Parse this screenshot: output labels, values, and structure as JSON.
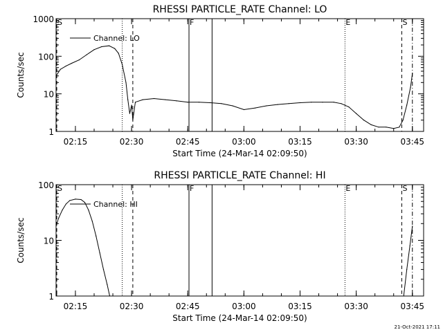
{
  "footer": {
    "date": "21-Oct-2021 17:11"
  },
  "chart_data": [
    {
      "type": "line",
      "title": "RHESSI PARTICLE_RATE Channel: LO",
      "ylabel": "Counts/sec",
      "xlabel": "Start Time (24-Mar-14 02:09:50)",
      "y_scale": "log",
      "ylim": [
        1,
        1000
      ],
      "xlim": [
        "02:09:50",
        "03:48:00"
      ],
      "x_ticks": [
        "02:15",
        "02:30",
        "02:45",
        "03:00",
        "03:15",
        "03:30",
        "03:45"
      ],
      "y_ticks": [
        "1",
        "10",
        "100",
        "1000"
      ],
      "legend": {
        "placement": "top-left",
        "entries": [
          "Channel: LO"
        ]
      },
      "markers": [
        {
          "label": "S",
          "time": "02:09:50",
          "style": "dashed"
        },
        {
          "label": "",
          "time": "02:27:30",
          "style": "dotted"
        },
        {
          "label": "",
          "time": "02:30:20",
          "style": "dashed"
        },
        {
          "label": "F",
          "time": "02:45:20",
          "style": "solid"
        },
        {
          "label": "",
          "time": "02:51:30",
          "style": "solid"
        },
        {
          "label": "E",
          "time": "03:27:00",
          "style": "dotted"
        },
        {
          "label": "S",
          "time": "03:42:10",
          "style": "dashed"
        },
        {
          "label": "",
          "time": "03:45:00",
          "style": "dashdot"
        }
      ],
      "series": [
        {
          "name": "Channel: LO",
          "points": [
            [
              "02:09:50",
              30
            ],
            [
              "02:11:00",
              45
            ],
            [
              "02:12:30",
              55
            ],
            [
              "02:14:00",
              65
            ],
            [
              "02:16:00",
              80
            ],
            [
              "02:18:00",
              110
            ],
            [
              "02:20:00",
              150
            ],
            [
              "02:22:00",
              180
            ],
            [
              "02:24:00",
              190
            ],
            [
              "02:25:30",
              160
            ],
            [
              "02:26:30",
              120
            ],
            [
              "02:27:30",
              60
            ],
            [
              "02:28:30",
              20
            ],
            [
              "02:29:00",
              7
            ],
            [
              "02:29:30",
              3
            ],
            [
              "02:30:00",
              5
            ],
            [
              "02:30:20",
              2
            ],
            [
              "02:31:00",
              6
            ],
            [
              "02:33:00",
              7
            ],
            [
              "02:36:00",
              7.5
            ],
            [
              "02:39:00",
              7
            ],
            [
              "02:42:00",
              6.5
            ],
            [
              "02:45:00",
              6
            ],
            [
              "02:48:00",
              6
            ],
            [
              "02:51:00",
              5.8
            ],
            [
              "02:54:00",
              5.5
            ],
            [
              "02:57:00",
              4.8
            ],
            [
              "03:00:00",
              3.8
            ],
            [
              "03:03:00",
              4.2
            ],
            [
              "03:06:00",
              4.8
            ],
            [
              "03:09:00",
              5.2
            ],
            [
              "03:12:00",
              5.5
            ],
            [
              "03:15:00",
              5.8
            ],
            [
              "03:18:00",
              6
            ],
            [
              "03:21:00",
              6
            ],
            [
              "03:24:00",
              6
            ],
            [
              "03:26:00",
              5.5
            ],
            [
              "03:28:00",
              4.5
            ],
            [
              "03:30:00",
              3
            ],
            [
              "03:32:00",
              2
            ],
            [
              "03:34:00",
              1.5
            ],
            [
              "03:36:00",
              1.3
            ],
            [
              "03:38:00",
              1.3
            ],
            [
              "03:40:00",
              1.2
            ],
            [
              "03:41:30",
              1.3
            ],
            [
              "03:42:30",
              2
            ],
            [
              "03:43:30",
              5
            ],
            [
              "03:44:30",
              15
            ],
            [
              "03:45:00",
              35
            ]
          ]
        }
      ]
    },
    {
      "type": "line",
      "title": "RHESSI PARTICLE_RATE Channel: HI",
      "ylabel": "Counts/sec",
      "xlabel": "Start Time (24-Mar-14 02:09:50)",
      "y_scale": "log",
      "ylim": [
        1,
        100
      ],
      "xlim": [
        "02:09:50",
        "03:48:00"
      ],
      "x_ticks": [
        "02:15",
        "02:30",
        "02:45",
        "03:00",
        "03:15",
        "03:30",
        "03:45"
      ],
      "y_ticks": [
        "1",
        "10",
        "100"
      ],
      "legend": {
        "placement": "top-left",
        "entries": [
          "Channel: HI"
        ]
      },
      "markers": [
        {
          "label": "S",
          "time": "02:09:50",
          "style": "dashed"
        },
        {
          "label": "",
          "time": "02:27:30",
          "style": "dotted"
        },
        {
          "label": "",
          "time": "02:30:20",
          "style": "dashed"
        },
        {
          "label": "F",
          "time": "02:45:20",
          "style": "solid"
        },
        {
          "label": "",
          "time": "02:51:30",
          "style": "solid"
        },
        {
          "label": "E",
          "time": "03:27:00",
          "style": "dotted"
        },
        {
          "label": "S",
          "time": "03:42:10",
          "style": "dashed"
        },
        {
          "label": "",
          "time": "03:45:00",
          "style": "dashdot"
        }
      ],
      "series": [
        {
          "name": "Channel: HI",
          "points": [
            [
              "02:09:50",
              18
            ],
            [
              "02:10:30",
              25
            ],
            [
              "02:11:30",
              35
            ],
            [
              "02:12:30",
              45
            ],
            [
              "02:13:30",
              52
            ],
            [
              "02:15:00",
              55
            ],
            [
              "02:16:30",
              54
            ],
            [
              "02:17:30",
              48
            ],
            [
              "02:18:30",
              35
            ],
            [
              "02:19:30",
              22
            ],
            [
              "02:20:30",
              12
            ],
            [
              "02:21:30",
              6
            ],
            [
              "02:22:30",
              3
            ],
            [
              "02:23:30",
              1.6
            ],
            [
              "02:24:10",
              1
            ]
          ]
        },
        {
          "name": "Channel: HI",
          "points": [
            [
              "03:42:40",
              1
            ],
            [
              "03:43:30",
              3
            ],
            [
              "03:44:20",
              8
            ],
            [
              "03:45:00",
              18
            ]
          ]
        }
      ]
    }
  ]
}
